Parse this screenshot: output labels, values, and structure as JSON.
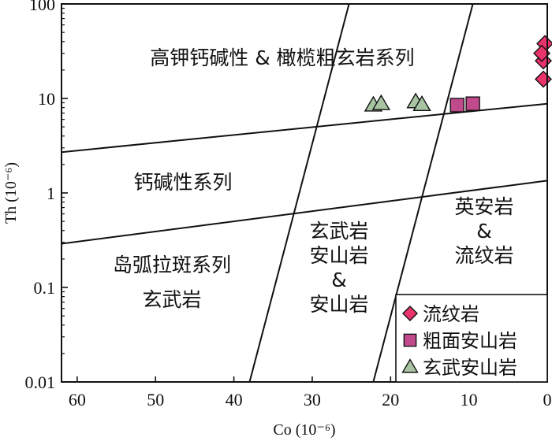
{
  "chart_data": {
    "type": "scatter",
    "xlabel": "Co (10⁻⁶)",
    "ylabel": "Th (10⁻⁶)",
    "xlim": [
      62,
      0
    ],
    "ylim": [
      0.01,
      100
    ],
    "x_scale": "linear",
    "y_scale": "log",
    "x_ticks": [
      "60",
      "50",
      "40",
      "30",
      "20",
      "10",
      "0"
    ],
    "x_tick_values": [
      60,
      50,
      40,
      30,
      20,
      10,
      0
    ],
    "y_ticks": [
      "0.01",
      "0.1",
      "1",
      "10",
      "100"
    ],
    "y_tick_values": [
      0.01,
      0.1,
      1,
      10,
      100
    ],
    "boundaries": [
      {
        "points": [
          [
            62,
            2.7
          ],
          [
            0,
            8.8
          ]
        ]
      },
      {
        "points": [
          [
            62,
            0.29
          ],
          [
            0,
            1.35
          ]
        ]
      },
      {
        "points": [
          [
            38,
            0.01
          ],
          [
            25.3,
            100
          ]
        ]
      },
      {
        "points": [
          [
            22.2,
            0.01
          ],
          [
            9.5,
            100
          ]
        ]
      }
    ],
    "regions": [
      {
        "name": "高钾钙碱性 & 橄榄粗玄岩系列",
        "lines": [
          "高钾钙碱性 & 橄榄粗玄岩系列"
        ]
      },
      {
        "name": "钙碱性系列",
        "lines": [
          "钙碱性系列"
        ]
      },
      {
        "name": "岛弧拉斑系列玄武岩",
        "lines": [
          "岛弧拉斑系列",
          "玄武岩"
        ]
      },
      {
        "name": "玄武岩安山岩&安山岩",
        "lines": [
          "玄武岩",
          "安山岩",
          "&",
          "安山岩"
        ]
      },
      {
        "name": "英安岩&流纹岩",
        "lines": [
          "英安岩",
          "&",
          "流纹岩"
        ]
      }
    ],
    "series": [
      {
        "name": "流纹岩",
        "marker": "diamond",
        "color": "#e8336b",
        "points": [
          [
            0.3,
            38
          ],
          [
            0.5,
            25
          ],
          [
            0.7,
            30
          ],
          [
            0.5,
            16
          ]
        ]
      },
      {
        "name": "粗面安山岩",
        "marker": "square",
        "color": "#c04a8c",
        "points": [
          [
            11.5,
            8.5
          ],
          [
            9.5,
            8.8
          ]
        ]
      },
      {
        "name": "玄武安山岩",
        "marker": "triangle",
        "color": "#a8c4a3",
        "points": [
          [
            22.2,
            8.5
          ],
          [
            21.2,
            8.8
          ],
          [
            16.8,
            9.2
          ],
          [
            16.0,
            8.6
          ]
        ]
      }
    ],
    "grid": false,
    "legend_position": "bottom-right"
  }
}
